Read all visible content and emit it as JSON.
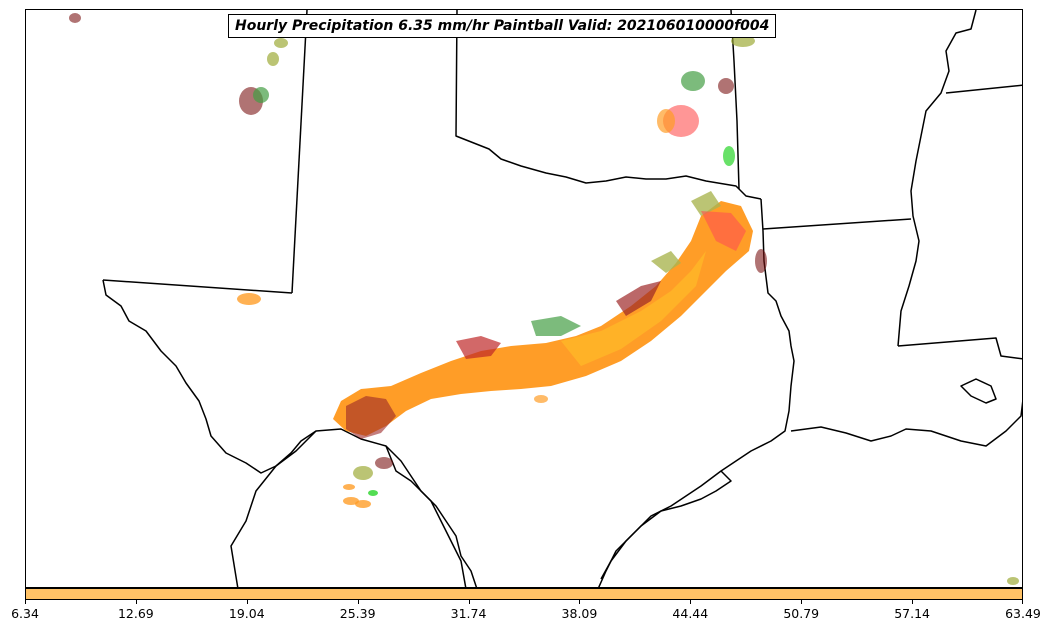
{
  "map": {
    "title": "Hourly Precipitation 6.35 mm/hr Paintball Valid: 202106010000f004",
    "colors": {
      "border": "#000000",
      "swath": [
        "#ff8c00",
        "#ffa500",
        "#b30000",
        "#8b0000",
        "#228b22",
        "#00cc00",
        "#9aa832",
        "#ff3030",
        "#7a1414"
      ],
      "colorbar": "#ffc266"
    }
  },
  "colorbar": {
    "ticks": [
      "6.34",
      "12.69",
      "19.04",
      "25.39",
      "31.74",
      "38.09",
      "44.44",
      "50.79",
      "57.14",
      "63.49"
    ]
  }
}
